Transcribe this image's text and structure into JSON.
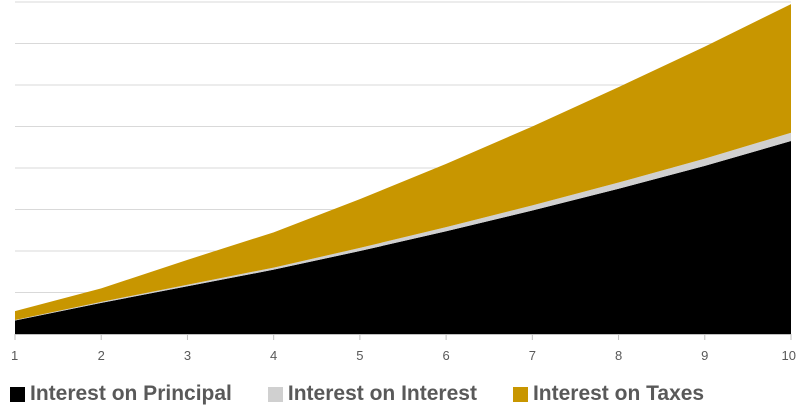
{
  "chart_data": {
    "type": "area",
    "stacked": true,
    "x": [
      1,
      2,
      3,
      4,
      5,
      6,
      7,
      8,
      9,
      10
    ],
    "series": [
      {
        "name": "Interest on Principal",
        "color": "#000000",
        "values": [
          13,
          30,
          46,
          62,
          80,
          99,
          119,
          140,
          162,
          186
        ]
      },
      {
        "name": "Interest on Interest",
        "color": "#d0d0d0",
        "values": [
          0.5,
          1,
          1.5,
          2,
          3,
          4,
          5,
          6,
          7,
          8
        ]
      },
      {
        "name": "Interest on Taxes",
        "color": "#c89600",
        "values": [
          8.5,
          13,
          24,
          34,
          47,
          61,
          76,
          92,
          108,
          124
        ]
      }
    ],
    "xlabel": "",
    "ylabel": "",
    "ylim": [
      0,
      320
    ],
    "grid": true,
    "legend_position": "bottom"
  }
}
